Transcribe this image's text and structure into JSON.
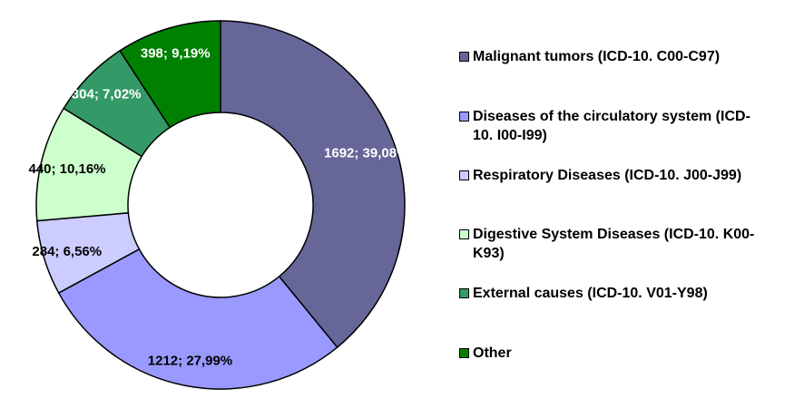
{
  "chart_data": {
    "type": "pie",
    "variant": "donut",
    "title": "",
    "slices": [
      {
        "label": "Malignant tumors (ICD-10. C00-C97)",
        "value": 1692,
        "percent": "39,08%",
        "display": "1692; 39,08%",
        "color": "#666699",
        "label_color": "#ffffff"
      },
      {
        "label": "Diseases of the circulatory system (ICD-10. I00-I99)",
        "value": 1212,
        "percent": "27,99%",
        "display": "1212; 27,99%",
        "color": "#9999ff",
        "label_color": "#000000"
      },
      {
        "label": "Respiratory Diseases (ICD-10. J00-J99)",
        "value": 284,
        "percent": "6,56%",
        "display": "284; 6,56%",
        "color": "#ccccff",
        "label_color": "#000000"
      },
      {
        "label": "Digestive System Diseases (ICD-10. K00-K93)",
        "value": 440,
        "percent": "10,16%",
        "display": "440; 10,16%",
        "color": "#ccffcc",
        "label_color": "#000000"
      },
      {
        "label": "External causes (ICD-10. V01-Y98)",
        "value": 304,
        "percent": "7,02%",
        "display": "304; 7,02%",
        "color": "#339966",
        "label_color": "#ffffff"
      },
      {
        "label": "Other",
        "value": 398,
        "percent": "9,19%",
        "display": "398; 9,19%",
        "color": "#008000",
        "label_color": "#ffffff"
      }
    ],
    "legend_position": "right"
  }
}
